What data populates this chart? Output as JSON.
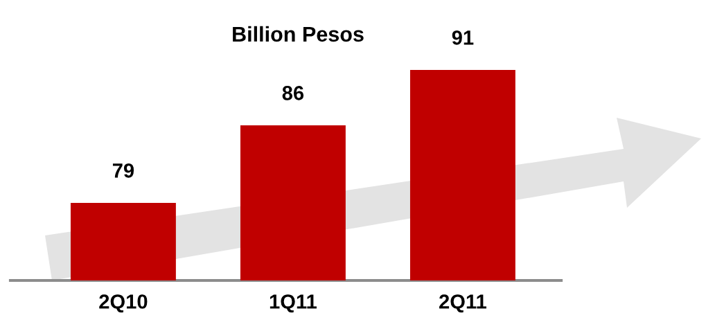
{
  "chart_data": {
    "type": "bar",
    "title": "Billion Pesos",
    "categories": [
      "2Q10",
      "1Q11",
      "2Q11"
    ],
    "values": [
      79,
      86,
      91
    ],
    "color": "#c00000",
    "ylim": [
      72,
      91
    ],
    "grid": false,
    "data_labels": true
  }
}
